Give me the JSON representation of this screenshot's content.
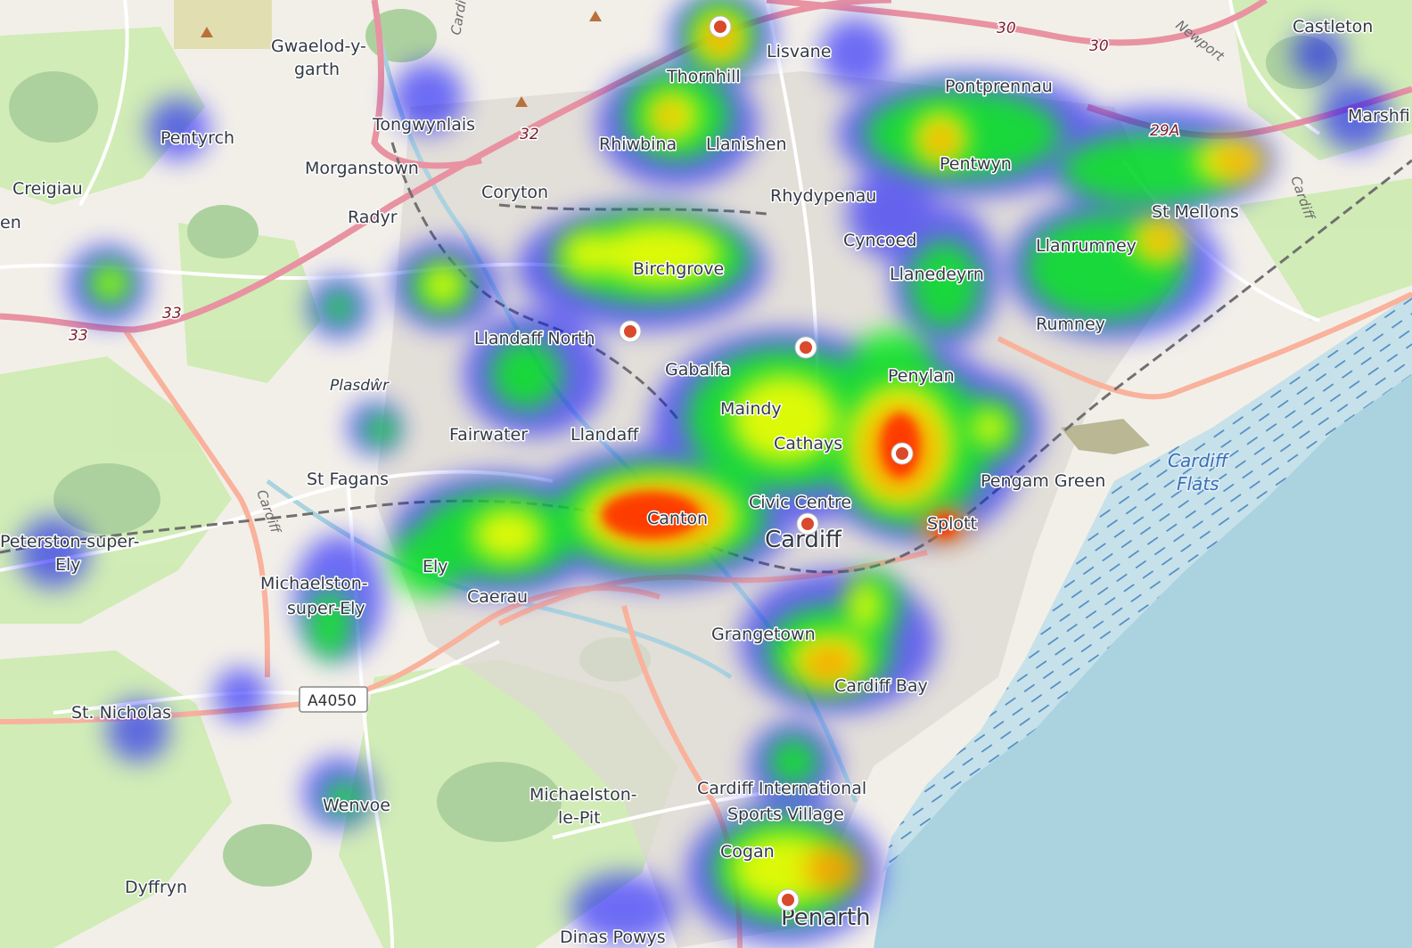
{
  "map": {
    "places": [
      {
        "label": "Gwaelod-y-"
      },
      {
        "label": "garth"
      },
      {
        "label": "Lisvane"
      },
      {
        "label": "Thornhill"
      },
      {
        "label": "Castleton"
      },
      {
        "label": "Pontprennau"
      },
      {
        "label": "Marshfi"
      },
      {
        "label": "Tongwynlais"
      },
      {
        "label": "Pentyrch"
      },
      {
        "label": "Rhiwbina"
      },
      {
        "label": "Llanishen"
      },
      {
        "label": "Morganstown"
      },
      {
        "label": "Pentwyn"
      },
      {
        "label": "Coryton"
      },
      {
        "label": "Rhydypenau"
      },
      {
        "label": "Creigiau"
      },
      {
        "label": "St Mellons"
      },
      {
        "label": "Radyr"
      },
      {
        "label": "Cyncoed"
      },
      {
        "label": "Llanrumney"
      },
      {
        "label": "Birchgrove"
      },
      {
        "label": "Llanedeyrn"
      },
      {
        "label": "Rumney"
      },
      {
        "label": "Llandaff North"
      },
      {
        "label": "Gabalfa"
      },
      {
        "label": "Penylan"
      },
      {
        "label": "Plasdŵr"
      },
      {
        "label": "Maindy"
      },
      {
        "label": "Fairwater"
      },
      {
        "label": "Llandaff"
      },
      {
        "label": "Cathays"
      },
      {
        "label": "St Fagans"
      },
      {
        "label": "Pengam Green"
      },
      {
        "label": "Civic Centre"
      },
      {
        "label": "Canton"
      },
      {
        "label": "Cardiff"
      },
      {
        "label": "Splott"
      },
      {
        "label": "Peterston-super-"
      },
      {
        "label": "Ely"
      },
      {
        "label": "Ely"
      },
      {
        "label": "Michaelston-"
      },
      {
        "label": "super-Ely"
      },
      {
        "label": "Caerau"
      },
      {
        "label": "Grangetown"
      },
      {
        "label": "Cardiff Bay"
      },
      {
        "label": "St. Nicholas"
      },
      {
        "label": "Michaelston-"
      },
      {
        "label": "le-Pit"
      },
      {
        "label": "Cardiff International"
      },
      {
        "label": "Sports Village"
      },
      {
        "label": "Wenvoe"
      },
      {
        "label": "Cogan"
      },
      {
        "label": "Dyffryn"
      },
      {
        "label": "Penarth"
      },
      {
        "label": "Dinas Powys"
      },
      {
        "label": "en"
      }
    ],
    "water_labels": [
      "Cardiff",
      "Flats"
    ],
    "road_numbers": [
      "30",
      "30",
      "32",
      "33",
      "33",
      "29A"
    ],
    "road_names": [
      "Cardiff",
      "Newport",
      "Cardiff",
      "Cardiff"
    ],
    "shield": "A4050",
    "colors": {
      "land": "#f2efe9",
      "sea": "#aad3df",
      "motorway": "#e892a2",
      "trunk": "#f9b29c",
      "heat_low": "#0000ff",
      "heat_mid": "#00ff00",
      "heat_high": "#ffff00",
      "heat_peak": "#ff0000",
      "marker": "#d9492b"
    }
  }
}
